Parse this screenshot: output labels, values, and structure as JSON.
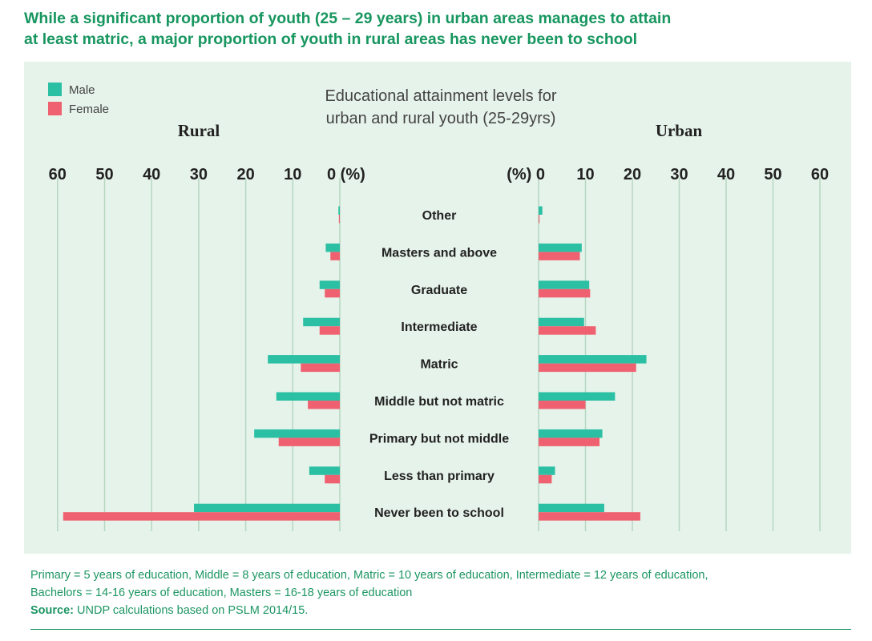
{
  "headline": {
    "line1": "While a significant proportion of youth (25 – 29 years) in urban areas manages to attain",
    "line2": "at least matric, a major proportion of youth in rural areas has never been to school"
  },
  "colors": {
    "male": "#2bbfa4",
    "female": "#ef6170",
    "accent": "#17965f",
    "panel": "#e6f3ea",
    "grid": "#b5d6c2"
  },
  "chart_data": {
    "type": "bar",
    "orientation": "horizontal",
    "title": "Educational attainment levels for urban and rural youth (25-29yrs)",
    "title_line1": "Educational attainment levels for",
    "title_line2": "urban and rural youth (25-29yrs)",
    "legend": [
      "Male",
      "Female"
    ],
    "categories": [
      "Other",
      "Masters and above",
      "Graduate",
      "Intermediate",
      "Matric",
      "Middle but not matric",
      "Primary but not middle",
      "Less than primary",
      "Never been to school"
    ],
    "rural": {
      "label": "Rural",
      "xlim": [
        0,
        60
      ],
      "ticks": [
        "60",
        "50",
        "40",
        "30",
        "20",
        "10",
        "0 (%)"
      ],
      "series": [
        {
          "name": "Male",
          "values": [
            0.3,
            3.0,
            4.3,
            7.8,
            15.3,
            13.5,
            18.2,
            6.5,
            31.0
          ]
        },
        {
          "name": "Female",
          "values": [
            0.2,
            2.0,
            3.2,
            4.3,
            8.3,
            6.8,
            13.0,
            3.2,
            58.8
          ]
        }
      ]
    },
    "urban": {
      "label": "Urban",
      "xlim": [
        0,
        60
      ],
      "ticks": [
        "(%) 0",
        "10",
        "20",
        "30",
        "40",
        "50",
        "60"
      ],
      "series": [
        {
          "name": "Male",
          "values": [
            0.8,
            9.2,
            10.8,
            9.7,
            23.0,
            16.3,
            13.6,
            3.5,
            14.0
          ]
        },
        {
          "name": "Female",
          "values": [
            0.2,
            8.8,
            11.0,
            12.2,
            20.8,
            10.0,
            13.0,
            2.8,
            21.7
          ]
        }
      ]
    }
  },
  "notes": {
    "line1": "Primary = 5 years of education, Middle = 8 years of education, Matric = 10 years of education, Intermediate = 12 years of education,",
    "line2": "Bachelors = 14-16 years of education, Masters = 16-18 years of education",
    "source_label": "Source:",
    "source_text": " UNDP calculations based on PSLM 2014/15."
  }
}
